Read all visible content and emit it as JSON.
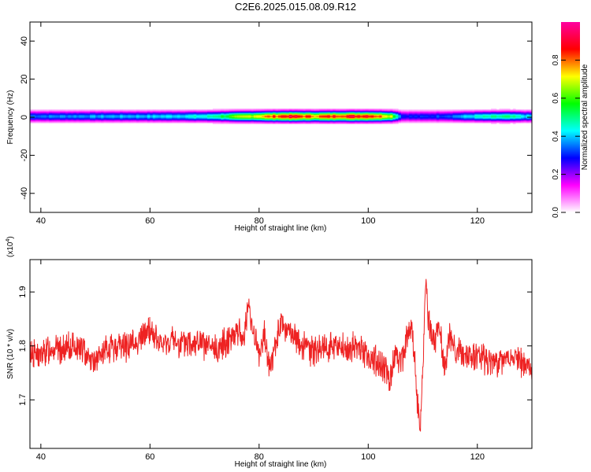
{
  "title": "C2E6.2025.015.08.09.R12",
  "chart_data": [
    {
      "type": "heatmap",
      "xlabel": "Height of straight line (km)",
      "ylabel": "Frequency (Hz)",
      "xlim": [
        38,
        130
      ],
      "ylim": [
        -50,
        50
      ],
      "xticks": [
        40,
        60,
        80,
        100,
        120
      ],
      "yticks": [
        -40,
        -20,
        0,
        20,
        40
      ],
      "colorbar": {
        "label": "Normalized spectral amplitude",
        "range": [
          0.0,
          1.0
        ],
        "ticks": [
          "0.0",
          "0.2",
          "0.4",
          "0.6",
          "0.8"
        ],
        "colors": [
          "#ffffff",
          "#ff00ff",
          "#0000ff",
          "#00ffff",
          "#00ff00",
          "#ffff00",
          "#ff0000",
          "#ff00a0"
        ]
      },
      "band": {
        "center_hz": 0.5,
        "halfwidth_hz": 3,
        "amplitude_profile_x": [
          38,
          50,
          60,
          70,
          75,
          80,
          85,
          90,
          95,
          100,
          104,
          106,
          110,
          115,
          120,
          125,
          130
        ],
        "amplitude_profile_v": [
          0.35,
          0.38,
          0.4,
          0.45,
          0.6,
          0.75,
          0.9,
          0.8,
          0.88,
          0.9,
          0.7,
          0.3,
          0.3,
          0.35,
          0.45,
          0.5,
          0.4
        ]
      }
    },
    {
      "type": "line",
      "xlabel": "Height of straight line (km)",
      "ylabel": "SNR (10 * v/v)",
      "exponent_label": "(x10",
      "exponent_power": "4",
      "exponent_close": ")",
      "xlim": [
        38,
        130
      ],
      "ylim": [
        1.61,
        1.96
      ],
      "xticks": [
        40,
        60,
        80,
        100,
        120
      ],
      "yticks": [
        1.7,
        1.8,
        1.9
      ],
      "series": [
        {
          "color": "#ee2222",
          "x": [
            38,
            40,
            42,
            44,
            46,
            48,
            50,
            52,
            54,
            56,
            58,
            60,
            62,
            64,
            66,
            68,
            70,
            72,
            74,
            76,
            77,
            78,
            79,
            80,
            81,
            82,
            83,
            84,
            86,
            88,
            90,
            92,
            94,
            96,
            98,
            100,
            102,
            104,
            105,
            106,
            107,
            108,
            109,
            109.5,
            110,
            110.5,
            111,
            112,
            113,
            114,
            115,
            116,
            118,
            120,
            122,
            124,
            126,
            128,
            130
          ],
          "y": [
            1.79,
            1.78,
            1.8,
            1.79,
            1.8,
            1.79,
            1.77,
            1.79,
            1.8,
            1.8,
            1.81,
            1.83,
            1.8,
            1.81,
            1.8,
            1.81,
            1.8,
            1.79,
            1.81,
            1.83,
            1.81,
            1.87,
            1.83,
            1.78,
            1.82,
            1.76,
            1.8,
            1.84,
            1.82,
            1.8,
            1.79,
            1.8,
            1.8,
            1.79,
            1.8,
            1.78,
            1.77,
            1.74,
            1.79,
            1.77,
            1.81,
            1.84,
            1.7,
            1.63,
            1.76,
            1.93,
            1.85,
            1.8,
            1.84,
            1.76,
            1.82,
            1.79,
            1.78,
            1.78,
            1.77,
            1.77,
            1.78,
            1.77,
            1.75
          ]
        }
      ]
    }
  ]
}
